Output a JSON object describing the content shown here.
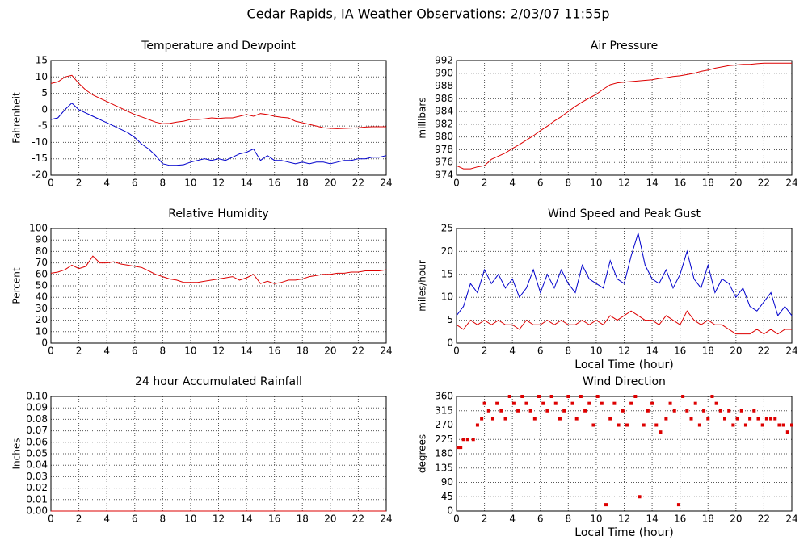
{
  "title": "Cedar Rapids, IA Weather Observations: 2/03/07 11:55p",
  "chart_data": [
    {
      "type": "line",
      "title": "Temperature and Dewpoint",
      "y_label": "Fahrenheit",
      "x": [
        0,
        0.5,
        1,
        1.5,
        2,
        2.5,
        3,
        3.5,
        4,
        4.5,
        5,
        5.5,
        6,
        6.5,
        7,
        7.5,
        8,
        8.5,
        9,
        9.5,
        10,
        10.5,
        11,
        11.5,
        12,
        12.5,
        13,
        13.5,
        14,
        14.5,
        15,
        15.5,
        16,
        16.5,
        17,
        17.5,
        18,
        18.5,
        19,
        19.5,
        20,
        20.5,
        21,
        21.5,
        22,
        22.5,
        23,
        23.5,
        24
      ],
      "series": [
        {
          "color": "#dd0000",
          "values": [
            8,
            8.5,
            10,
            10.5,
            8,
            6,
            4.5,
            3.5,
            2.5,
            1.5,
            0.5,
            -0.5,
            -1.5,
            -2.2,
            -3,
            -3.8,
            -4.3,
            -4.2,
            -3.8,
            -3.5,
            -3,
            -3,
            -2.8,
            -2.5,
            -2.7,
            -2.5,
            -2.5,
            -2,
            -1.5,
            -2,
            -1.2,
            -1.5,
            -2,
            -2.3,
            -2.5,
            -3.5,
            -4,
            -4.5,
            -5,
            -5.5,
            -5.7,
            -5.8,
            -5.7,
            -5.6,
            -5.5,
            -5.3,
            -5.2,
            -5.2,
            -5.2
          ]
        },
        {
          "color": "#0000cc",
          "values": [
            -3,
            -2.5,
            0,
            2,
            0,
            -1,
            -2,
            -3,
            -4,
            -5,
            -6,
            -7,
            -8.5,
            -10.5,
            -12,
            -14,
            -16.5,
            -17,
            -17,
            -16.8,
            -16,
            -15.5,
            -15,
            -15.5,
            -15,
            -15.5,
            -14.5,
            -13.5,
            -13,
            -12,
            -15.5,
            -14,
            -15.5,
            -15.5,
            -16,
            -16.5,
            -16,
            -16.5,
            -16,
            -16,
            -16.5,
            -16,
            -15.5,
            -15.5,
            -15,
            -15,
            -14.5,
            -14.5,
            -14
          ]
        }
      ],
      "xlim": [
        0,
        24
      ],
      "xticks": [
        0,
        2,
        4,
        6,
        8,
        10,
        12,
        14,
        16,
        18,
        20,
        22,
        24
      ],
      "ylim": [
        -20,
        15
      ],
      "yticks": [
        -20,
        -15,
        -10,
        -5,
        0,
        5,
        10,
        15
      ],
      "grid": true
    },
    {
      "type": "line",
      "title": "Air Pressure",
      "y_label": "millibars",
      "x": [
        0,
        0.5,
        1,
        1.5,
        2,
        2.5,
        3,
        3.5,
        4,
        4.5,
        5,
        5.5,
        6,
        6.5,
        7,
        7.5,
        8,
        8.5,
        9,
        9.5,
        10,
        10.5,
        11,
        11.5,
        12,
        12.5,
        13,
        13.5,
        14,
        14.5,
        15,
        15.5,
        16,
        16.5,
        17,
        17.5,
        18,
        18.5,
        19,
        19.5,
        20,
        20.5,
        21,
        21.5,
        22,
        22.5,
        23,
        23.5,
        24
      ],
      "series": [
        {
          "color": "#dd0000",
          "values": [
            975.5,
            975,
            975,
            975.3,
            975.5,
            976.5,
            977,
            977.5,
            978.2,
            978.8,
            979.5,
            980.2,
            981,
            981.7,
            982.5,
            983.2,
            984,
            984.8,
            985.5,
            986.1,
            986.7,
            987.5,
            988.2,
            988.5,
            988.6,
            988.7,
            988.8,
            988.9,
            989,
            989.2,
            989.3,
            989.5,
            989.6,
            989.8,
            990,
            990.3,
            990.5,
            990.8,
            991,
            991.2,
            991.3,
            991.4,
            991.4,
            991.5,
            991.6,
            991.6,
            991.6,
            991.6,
            991.6
          ]
        }
      ],
      "xlim": [
        0,
        24
      ],
      "xticks": [
        0,
        2,
        4,
        6,
        8,
        10,
        12,
        14,
        16,
        18,
        20,
        22,
        24
      ],
      "ylim": [
        974,
        992
      ],
      "yticks": [
        974,
        976,
        978,
        980,
        982,
        984,
        986,
        988,
        990,
        992
      ],
      "grid": true
    },
    {
      "type": "line",
      "title": "Relative Humidity",
      "y_label": "Percent",
      "x": [
        0,
        0.5,
        1,
        1.5,
        2,
        2.5,
        3,
        3.5,
        4,
        4.5,
        5,
        5.5,
        6,
        6.5,
        7,
        7.5,
        8,
        8.5,
        9,
        9.5,
        10,
        10.5,
        11,
        11.5,
        12,
        12.5,
        13,
        13.5,
        14,
        14.5,
        15,
        15.5,
        16,
        16.5,
        17,
        17.5,
        18,
        18.5,
        19,
        19.5,
        20,
        20.5,
        21,
        21.5,
        22,
        22.5,
        23,
        23.5,
        24
      ],
      "series": [
        {
          "color": "#dd0000",
          "values": [
            61,
            62,
            64,
            68,
            65,
            67,
            76,
            70,
            70,
            71,
            69,
            68,
            67,
            66,
            63,
            60,
            58,
            56,
            55,
            53,
            53,
            53,
            54,
            55,
            56,
            57,
            58,
            55,
            57,
            60,
            52,
            54,
            52,
            53,
            55,
            55,
            56,
            58,
            59,
            60,
            60,
            61,
            61,
            62,
            62,
            63,
            63,
            63,
            64
          ]
        }
      ],
      "xlim": [
        0,
        24
      ],
      "xticks": [
        0,
        2,
        4,
        6,
        8,
        10,
        12,
        14,
        16,
        18,
        20,
        22,
        24
      ],
      "ylim": [
        0,
        100
      ],
      "yticks": [
        0,
        10,
        20,
        30,
        40,
        50,
        60,
        70,
        80,
        90,
        100
      ],
      "grid": true
    },
    {
      "type": "line",
      "title": "Wind Speed and Peak Gust",
      "y_label": "miles/hour",
      "x_label": "Local Time (hour)",
      "x": [
        0,
        0.5,
        1,
        1.5,
        2,
        2.5,
        3,
        3.5,
        4,
        4.5,
        5,
        5.5,
        6,
        6.5,
        7,
        7.5,
        8,
        8.5,
        9,
        9.5,
        10,
        10.5,
        11,
        11.5,
        12,
        12.5,
        13,
        13.5,
        14,
        14.5,
        15,
        15.5,
        16,
        16.5,
        17,
        17.5,
        18,
        18.5,
        19,
        19.5,
        20,
        20.5,
        21,
        21.5,
        22,
        22.5,
        23,
        23.5,
        24
      ],
      "series": [
        {
          "color": "#0000cc",
          "values": [
            6,
            8,
            13,
            11,
            16,
            13,
            15,
            12,
            14,
            10,
            12,
            16,
            11,
            15,
            12,
            16,
            13,
            11,
            17,
            14,
            13,
            12,
            18,
            14,
            13,
            19,
            24,
            17,
            14,
            13,
            16,
            12,
            15,
            20,
            14,
            12,
            17,
            11,
            14,
            13,
            10,
            12,
            8,
            7,
            9,
            11,
            6,
            8,
            6
          ]
        },
        {
          "color": "#dd0000",
          "values": [
            4,
            3,
            5,
            4,
            5,
            4,
            5,
            4,
            4,
            3,
            5,
            4,
            4,
            5,
            4,
            5,
            4,
            4,
            5,
            4,
            5,
            4,
            6,
            5,
            6,
            7,
            6,
            5,
            5,
            4,
            6,
            5,
            4,
            7,
            5,
            4,
            5,
            4,
            4,
            3,
            2,
            2,
            2,
            3,
            2,
            3,
            2,
            3,
            3
          ]
        }
      ],
      "xlim": [
        0,
        24
      ],
      "xticks": [
        0,
        2,
        4,
        6,
        8,
        10,
        12,
        14,
        16,
        18,
        20,
        22,
        24
      ],
      "ylim": [
        0,
        25
      ],
      "yticks": [
        0,
        5,
        10,
        15,
        20,
        25
      ],
      "grid": true
    },
    {
      "type": "line",
      "title": "24 hour Accumulated Rainfall",
      "y_label": "Inches",
      "x": [
        0,
        24
      ],
      "series": [
        {
          "color": "#dd0000",
          "values": [
            0,
            0
          ]
        }
      ],
      "xlim": [
        0,
        24
      ],
      "xticks": [
        0,
        2,
        4,
        6,
        8,
        10,
        12,
        14,
        16,
        18,
        20,
        22,
        24
      ],
      "ylim": [
        0,
        0.1
      ],
      "yticks": [
        {
          "value": 0,
          "label": "0.00"
        },
        {
          "value": 0.01,
          "label": "0.01"
        },
        {
          "value": 0.02,
          "label": "0.02"
        },
        {
          "value": 0.03,
          "label": "0.03"
        },
        {
          "value": 0.04,
          "label": "0.04"
        },
        {
          "value": 0.05,
          "label": "0.05"
        },
        {
          "value": 0.06,
          "label": "0.06"
        },
        {
          "value": 0.07,
          "label": "0.07"
        },
        {
          "value": 0.08,
          "label": "0.08"
        },
        {
          "value": 0.09,
          "label": "0.09"
        },
        {
          "value": 0.1,
          "label": "0.10"
        }
      ],
      "grid": true
    },
    {
      "type": "scatter",
      "title": "Wind Direction",
      "y_label": "degrees",
      "x_label": "Local Time (hour)",
      "x": [
        0.1,
        0.3,
        0.5,
        0.8,
        1.2,
        1.5,
        1.8,
        2.0,
        2.3,
        2.6,
        2.9,
        3.2,
        3.5,
        3.8,
        4.1,
        4.4,
        4.7,
        5.0,
        5.3,
        5.6,
        5.9,
        6.2,
        6.5,
        6.8,
        7.1,
        7.4,
        7.7,
        8.0,
        8.3,
        8.6,
        8.9,
        9.2,
        9.5,
        9.8,
        10.1,
        10.4,
        10.7,
        11.0,
        11.3,
        11.6,
        11.9,
        12.2,
        12.5,
        12.8,
        13.1,
        13.4,
        13.7,
        14.0,
        14.3,
        14.6,
        15.0,
        15.3,
        15.6,
        15.9,
        16.2,
        16.5,
        16.8,
        17.1,
        17.4,
        17.7,
        18.0,
        18.3,
        18.6,
        18.9,
        19.2,
        19.5,
        19.8,
        20.1,
        20.4,
        20.7,
        21.0,
        21.3,
        21.6,
        21.9,
        22.2,
        22.5,
        22.8,
        23.1,
        23.4,
        23.7,
        24
      ],
      "series": [
        {
          "color": "#dd0000",
          "values": [
            200,
            200,
            225,
            225,
            225,
            270,
            290,
            338,
            315,
            290,
            338,
            315,
            290,
            360,
            338,
            315,
            360,
            338,
            315,
            290,
            360,
            338,
            315,
            360,
            338,
            290,
            315,
            360,
            338,
            290,
            360,
            315,
            338,
            270,
            360,
            338,
            20,
            290,
            338,
            270,
            315,
            270,
            338,
            360,
            45,
            270,
            315,
            338,
            270,
            248,
            290,
            338,
            315,
            20,
            360,
            315,
            290,
            338,
            270,
            315,
            290,
            360,
            338,
            315,
            290,
            315,
            270,
            290,
            315,
            270,
            290,
            315,
            290,
            270,
            290,
            290,
            290,
            270,
            270,
            248,
            270
          ]
        }
      ],
      "xlim": [
        0,
        24
      ],
      "xticks": [
        0,
        2,
        4,
        6,
        8,
        10,
        12,
        14,
        16,
        18,
        20,
        22,
        24
      ],
      "ylim": [
        0,
        360
      ],
      "yticks": [
        0,
        45,
        90,
        135,
        180,
        225,
        270,
        315,
        360
      ],
      "grid": true
    }
  ]
}
